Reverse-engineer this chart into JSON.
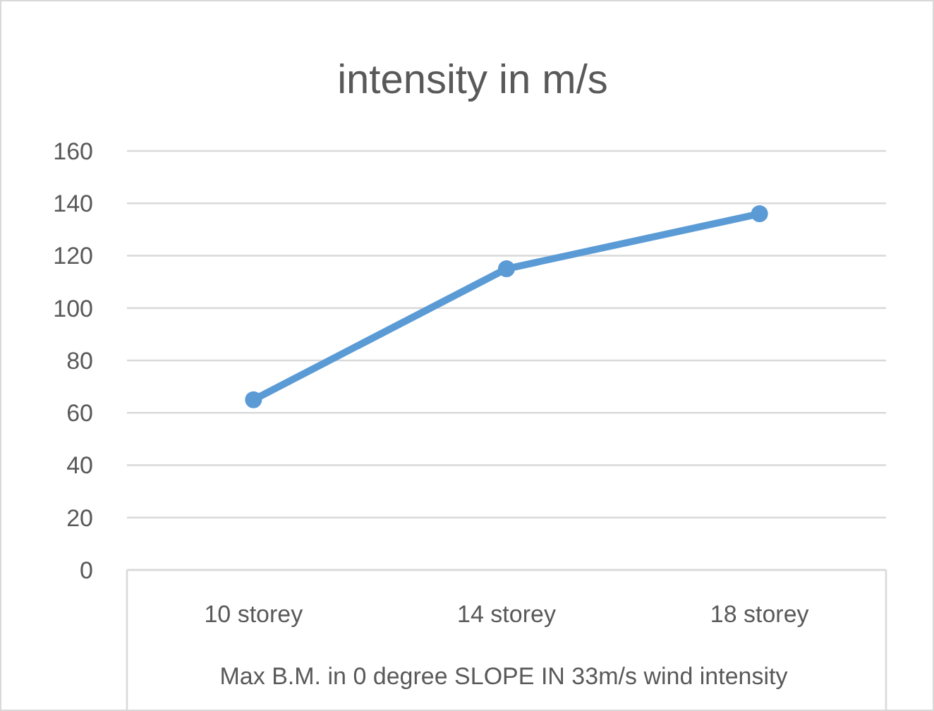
{
  "chart_data": {
    "type": "line",
    "title": "intensity in m/s",
    "xlabel": "Max B.M. in 0 degree SLOPE IN 33m/s wind intensity",
    "categories": [
      "10 storey",
      "14 storey",
      "18 storey"
    ],
    "series": [
      {
        "color": "#5b9bd5",
        "values": [
          65,
          115,
          136
        ]
      }
    ],
    "ylim": [
      0,
      160
    ],
    "yticks": [
      0,
      20,
      40,
      60,
      80,
      100,
      120,
      140,
      160
    ],
    "grid": "y",
    "marker": "circle",
    "line_style": "solid"
  }
}
